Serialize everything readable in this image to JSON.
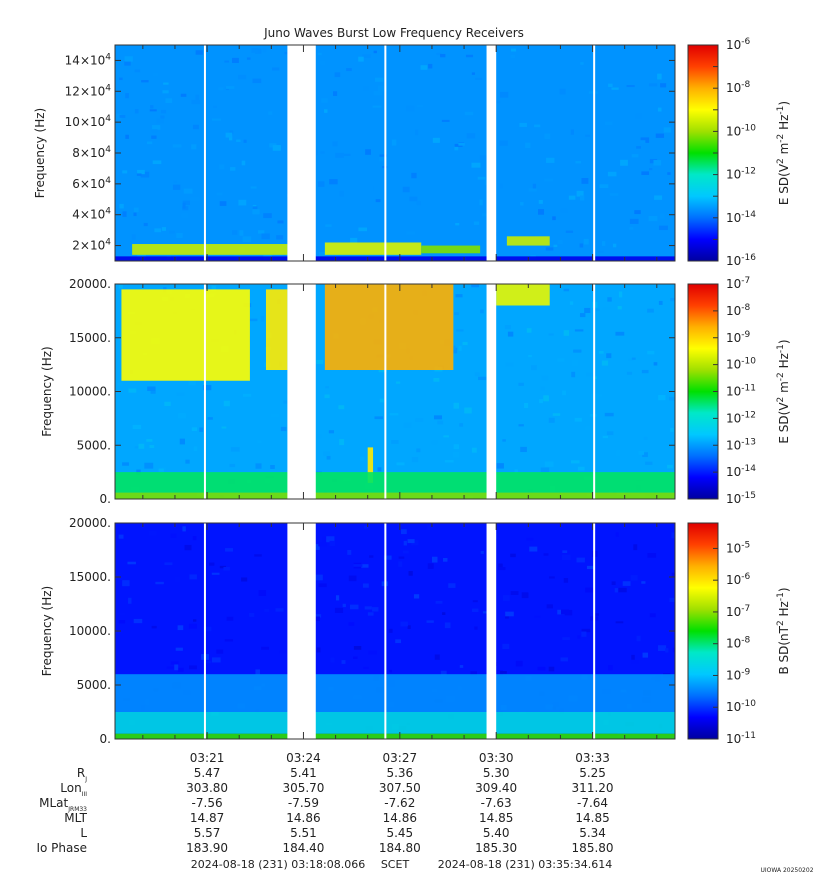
{
  "title": "Juno Waves Burst Low Frequency Receivers",
  "footer": {
    "start_time": "2024-08-18 (231) 03:18:08.066",
    "frame": "SCET",
    "end_time": "2024-08-18 (231) 03:35:34.614",
    "stamp": "UIOWA 20250202"
  },
  "colors": {
    "colormap": [
      "#0000a0",
      "#0000ff",
      "#0070ff",
      "#00c8ff",
      "#00e8c8",
      "#00e000",
      "#a0e000",
      "#ffff00",
      "#ffb000",
      "#ff4000",
      "#e00000"
    ]
  },
  "chart_data": [
    {
      "type": "heatmap",
      "panel": "top",
      "ylabel": "Frequency (Hz)",
      "ylim": [
        10000,
        150000
      ],
      "yticks": [
        {
          "value": 20000,
          "mant": "2×10",
          "exp": "4"
        },
        {
          "value": 40000,
          "mant": "4×10",
          "exp": "4"
        },
        {
          "value": 60000,
          "mant": "6×10",
          "exp": "4"
        },
        {
          "value": 80000,
          "mant": "8×10",
          "exp": "4"
        },
        {
          "value": 100000,
          "mant": "10×10",
          "exp": "4"
        },
        {
          "value": 120000,
          "mant": "12×10",
          "exp": "4"
        },
        {
          "value": 140000,
          "mant": "14×10",
          "exp": "4"
        }
      ],
      "colorbar_label": {
        "pre": "E SD(V",
        "sup1": "2",
        "mid": " m",
        "sup2": "-2",
        "post": " Hz",
        "sup3": "-1",
        "end": ")"
      },
      "colorbar_ticks": [
        "-6",
        "-8",
        "-10",
        "-12",
        "-14",
        "-16"
      ],
      "colorbar_range": [
        -16,
        -6
      ],
      "background_level": -13.6,
      "features": [
        {
          "t0": "03:18:40",
          "t1": "03:23:30",
          "f0": 14000,
          "f1": 21000,
          "level": -9.6
        },
        {
          "t0": "03:24:40",
          "t1": "03:27:40",
          "f0": 14000,
          "f1": 22000,
          "level": -9.4
        },
        {
          "t0": "03:27:40",
          "t1": "03:29:30",
          "f0": 15000,
          "f1": 20000,
          "level": -10.2
        },
        {
          "t0": "03:30:20",
          "t1": "03:31:40",
          "f0": 20000,
          "f1": 26000,
          "level": -9.6
        },
        {
          "t0": "03:18:08",
          "t1": "03:35:34",
          "f0": 10000,
          "f1": 13000,
          "level": -15.2
        }
      ]
    },
    {
      "type": "heatmap",
      "panel": "middle",
      "ylabel": "Frequency (Hz)",
      "ylim": [
        0,
        20000
      ],
      "yticks": [
        {
          "value": 0,
          "label": "0."
        },
        {
          "value": 5000,
          "label": "5000."
        },
        {
          "value": 10000,
          "label": "10000."
        },
        {
          "value": 15000,
          "label": "15000."
        },
        {
          "value": 20000,
          "label": "20000."
        }
      ],
      "colorbar_label": {
        "pre": "E SD(V",
        "sup1": "2",
        "mid": " m",
        "sup2": "-2",
        "post": " Hz",
        "sup3": "-1",
        "end": ")"
      },
      "colorbar_ticks": [
        "-7",
        "-8",
        "-9",
        "-10",
        "-11",
        "-12",
        "-13",
        "-14",
        "-15"
      ],
      "colorbar_range": [
        -15,
        -7
      ],
      "background_level": -12.9,
      "features": [
        {
          "t0": "03:18:20",
          "t1": "03:22:20",
          "f0": 11000,
          "f1": 19500,
          "level": -9.4
        },
        {
          "t0": "03:22:50",
          "t1": "03:23:30",
          "f0": 12000,
          "f1": 19500,
          "level": -9.2
        },
        {
          "t0": "03:24:40",
          "t1": "03:28:40",
          "f0": 12000,
          "f1": 20000,
          "level": -8.6
        },
        {
          "t0": "03:30:00",
          "t1": "03:31:40",
          "f0": 18000,
          "f1": 20000,
          "level": -9.6
        },
        {
          "t0": "03:26:00",
          "t1": "03:26:10",
          "f0": 1500,
          "f1": 4800,
          "level": -9.2
        },
        {
          "t0": "03:18:08",
          "t1": "03:35:34",
          "f0": 0,
          "f1": 600,
          "level": -10.4
        },
        {
          "t0": "03:18:08",
          "t1": "03:35:34",
          "f0": 600,
          "f1": 2500,
          "level": -11.4
        }
      ]
    },
    {
      "type": "heatmap",
      "panel": "bottom",
      "ylabel": "Frequency (Hz)",
      "ylim": [
        0,
        20000
      ],
      "yticks": [
        {
          "value": 0,
          "label": "0."
        },
        {
          "value": 5000,
          "label": "5000."
        },
        {
          "value": 10000,
          "label": "10000."
        },
        {
          "value": 15000,
          "label": "15000."
        },
        {
          "value": 20000,
          "label": "20000."
        }
      ],
      "colorbar_label": {
        "pre": "B SD(nT",
        "sup1": "2",
        "mid": "",
        "sup2": "",
        "post": " Hz",
        "sup3": "-1",
        "end": ")"
      },
      "colorbar_ticks": [
        "-5",
        "-6",
        "-7",
        "-8",
        "-9",
        "-10",
        "-11"
      ],
      "colorbar_range": [
        -11,
        -4.2
      ],
      "background_level": -10.2,
      "features": [
        {
          "t0": "03:18:08",
          "t1": "03:35:34",
          "f0": 0,
          "f1": 500,
          "level": -7.4
        },
        {
          "t0": "03:18:08",
          "t1": "03:35:34",
          "f0": 500,
          "f1": 2500,
          "level": -8.6
        },
        {
          "t0": "03:18:08",
          "t1": "03:35:34",
          "f0": 2500,
          "f1": 6000,
          "level": -9.4
        }
      ]
    }
  ],
  "time_axis": {
    "range": [
      "03:18:08",
      "03:35:34"
    ],
    "major_ticks": [
      "03:21",
      "03:24",
      "03:27",
      "03:30",
      "03:33"
    ],
    "minor_ticks": [
      "03:19",
      "03:20",
      "03:22",
      "03:23",
      "03:25",
      "03:26",
      "03:28",
      "03:29",
      "03:31",
      "03:32",
      "03:34",
      "03:35"
    ],
    "data_gaps": [
      [
        "03:23:30",
        "03:24:23"
      ],
      [
        "03:29:42",
        "03:30:00"
      ]
    ],
    "dropouts": [
      "03:20:56",
      "03:26:33",
      "03:33:03"
    ]
  },
  "ephemeris": {
    "rows": [
      {
        "label": "R",
        "sub": "J",
        "values": [
          "5.47",
          "5.41",
          "5.36",
          "5.30",
          "5.25"
        ]
      },
      {
        "label": "Lon",
        "sub": "III",
        "values": [
          "303.80",
          "305.70",
          "307.50",
          "309.40",
          "311.20"
        ]
      },
      {
        "label": "MLat",
        "sub": "JRM33",
        "values": [
          "-7.56",
          "-7.59",
          "-7.62",
          "-7.63",
          "-7.64"
        ]
      },
      {
        "label": "MLT",
        "sub": "",
        "values": [
          "14.87",
          "14.86",
          "14.86",
          "14.85",
          "14.85"
        ]
      },
      {
        "label": "L",
        "sub": "",
        "values": [
          "5.57",
          "5.51",
          "5.45",
          "5.40",
          "5.34"
        ]
      },
      {
        "label": "Io Phase",
        "sub": "",
        "values": [
          "183.90",
          "184.40",
          "184.80",
          "185.30",
          "185.80"
        ]
      }
    ]
  }
}
